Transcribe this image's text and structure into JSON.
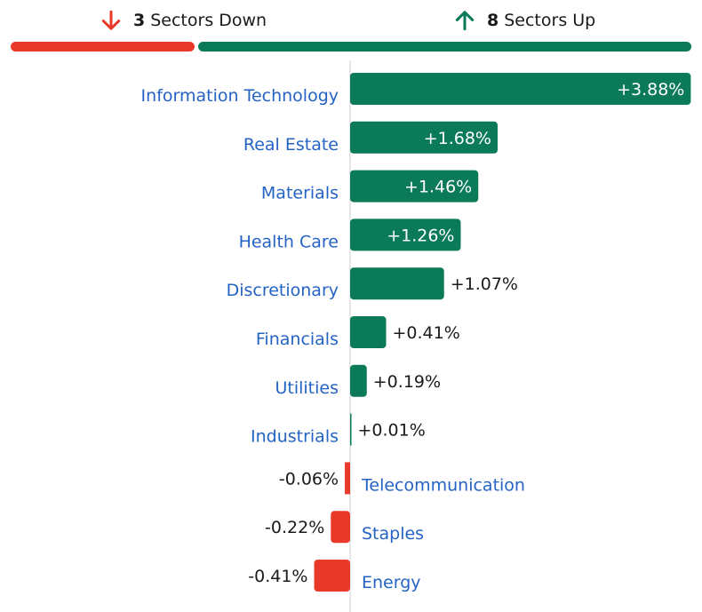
{
  "summary": {
    "down": {
      "count": "3",
      "label": "Sectors Down",
      "icon": "arrow-down-icon"
    },
    "up": {
      "count": "8",
      "label": "Sectors Up",
      "icon": "arrow-up-icon"
    }
  },
  "colors": {
    "up": "#0a7a58",
    "down": "#e8392a",
    "label": "#2463c4",
    "value_text": "#1a1a1a",
    "axis": "#cccccc"
  },
  "chart_data": {
    "type": "bar",
    "orientation": "horizontal",
    "unit": "%",
    "categories": [
      "Information Technology",
      "Real Estate",
      "Materials",
      "Health Care",
      "Discretionary",
      "Financials",
      "Utilities",
      "Industrials",
      "Telecommunication",
      "Staples",
      "Energy"
    ],
    "values": [
      3.88,
      1.68,
      1.46,
      1.26,
      1.07,
      0.41,
      0.19,
      0.01,
      -0.06,
      -0.22,
      -0.41
    ],
    "value_labels": [
      "+3.88%",
      "+1.68%",
      "+1.46%",
      "+1.26%",
      "+1.07%",
      "+0.41%",
      "+0.19%",
      "+0.01%",
      "-0.06%",
      "-0.22%",
      "-0.41%"
    ]
  }
}
